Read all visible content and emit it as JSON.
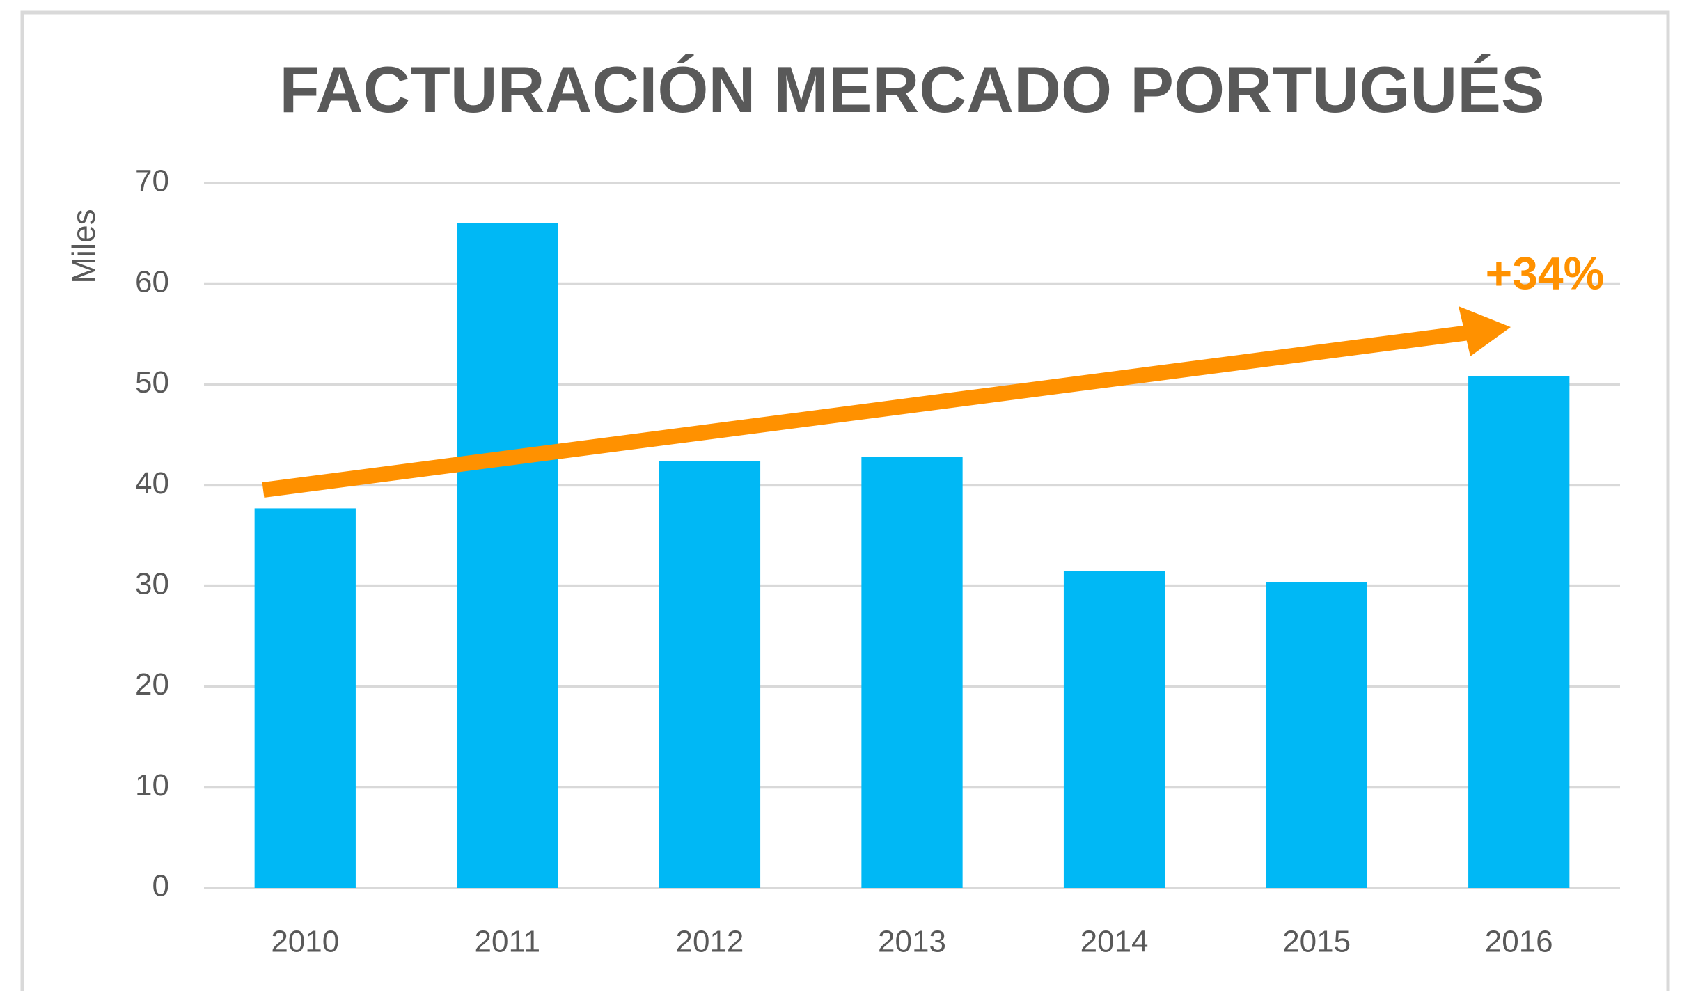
{
  "chart_data": {
    "type": "bar",
    "title": "FACTURACIÓN MERCADO PORTUGUÉS",
    "y_label": "Miles",
    "annotation": "+34%",
    "categories": [
      "2010",
      "2011",
      "2012",
      "2013",
      "2014",
      "2015",
      "2016"
    ],
    "values": [
      37.7,
      66.0,
      42.4,
      42.8,
      31.5,
      30.4,
      50.8
    ],
    "color": "#00b8f5",
    "ylim": [
      0,
      70
    ],
    "yticks": [
      0,
      10,
      20,
      30,
      40,
      50,
      60,
      70
    ],
    "grid": true
  }
}
